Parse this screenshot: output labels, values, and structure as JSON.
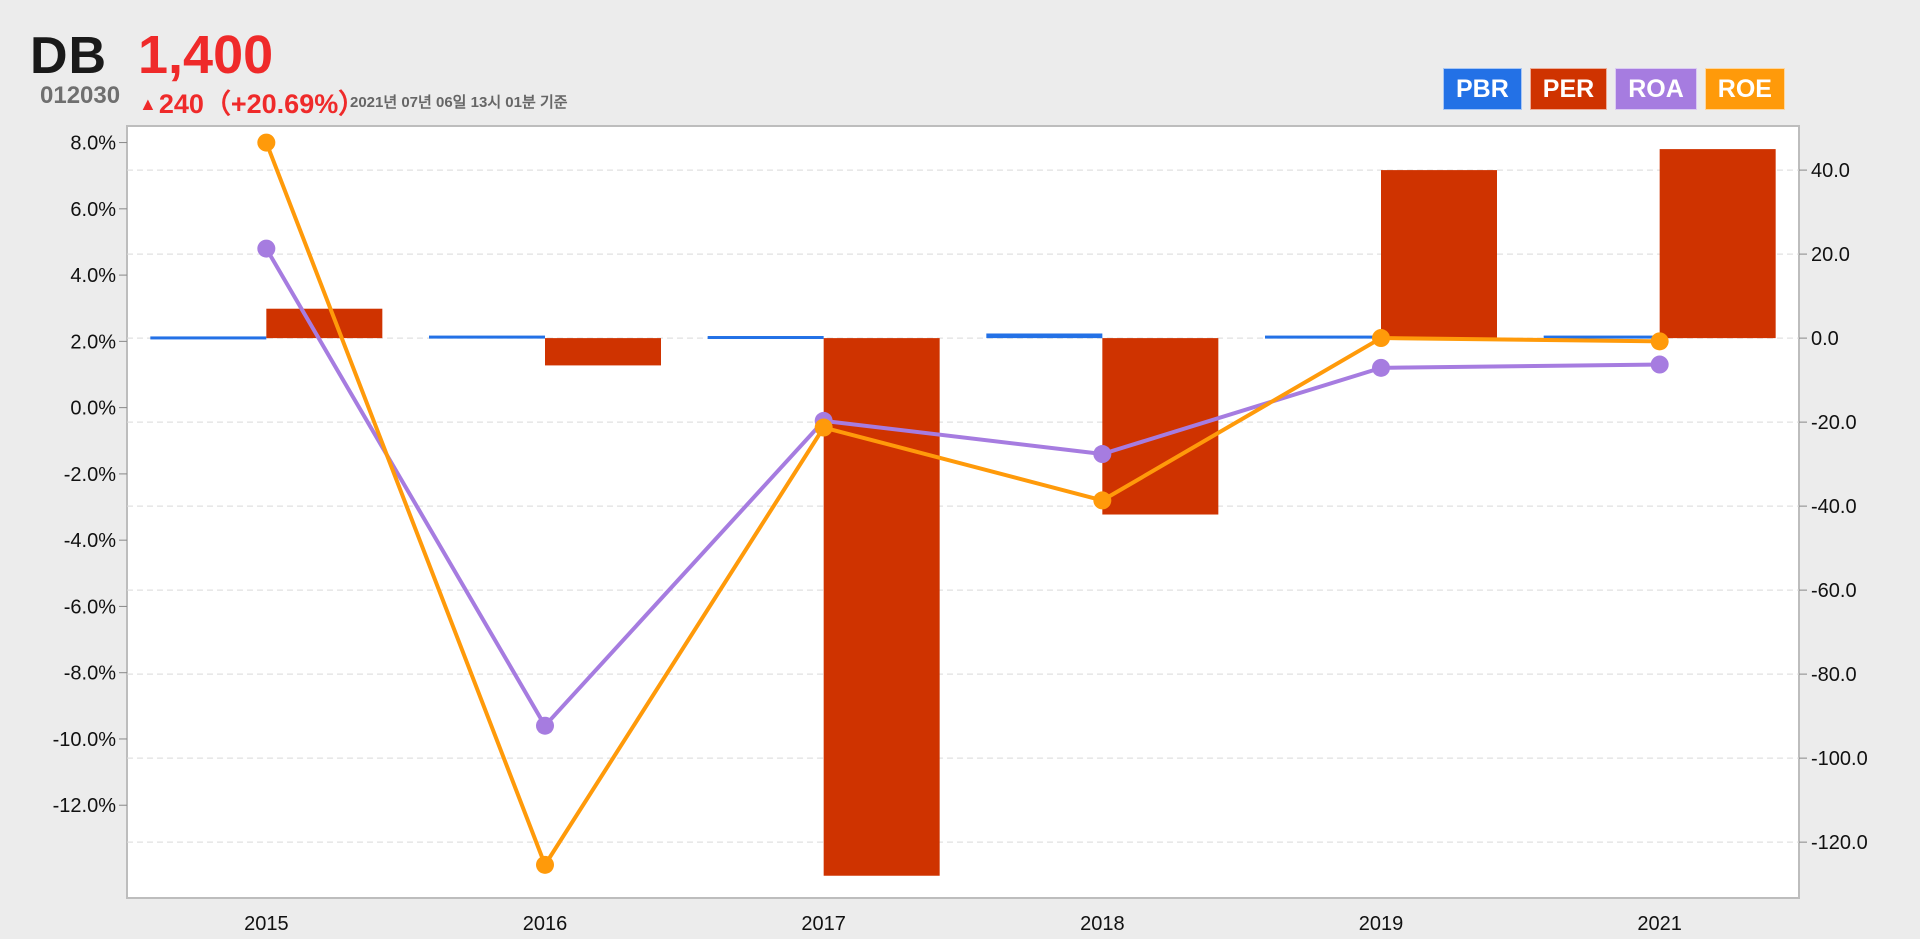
{
  "header": {
    "name": "DB",
    "price": "1,400",
    "code": "012030",
    "change_arrow": "▲",
    "change": "240（+20.69%）",
    "timestamp": "2021년 07년 06일 13시 01분 기준"
  },
  "legend": [
    {
      "label": "PBR",
      "color": "#2371e6"
    },
    {
      "label": "PER",
      "color": "#cf3300"
    },
    {
      "label": "ROA",
      "color": "#a67ce0"
    },
    {
      "label": "ROE",
      "color": "#ff9a0a"
    }
  ],
  "chart_data": {
    "type": "bar",
    "categories": [
      "2015",
      "2016",
      "2017",
      "2018",
      "2019",
      "2021"
    ],
    "series": [
      {
        "name": "PBR",
        "type": "bar",
        "axis": "right",
        "color": "#2371e6",
        "values": [
          0.4,
          0.6,
          0.5,
          1.1,
          0.6,
          0.6
        ]
      },
      {
        "name": "PER",
        "type": "bar",
        "axis": "right",
        "color": "#cf3300",
        "values": [
          7.0,
          -6.5,
          -128.0,
          -42.0,
          40.0,
          45.0
        ]
      },
      {
        "name": "ROA",
        "type": "line",
        "axis": "left",
        "color": "#a67ce0",
        "values": [
          4.8,
          -9.6,
          -0.4,
          -1.4,
          1.2,
          1.3
        ]
      },
      {
        "name": "ROE",
        "type": "line",
        "axis": "left",
        "color": "#ff9a0a",
        "values": [
          8.0,
          -13.8,
          -0.6,
          -2.8,
          2.1,
          2.0
        ]
      }
    ],
    "left_axis": {
      "ticks": [
        "8.0%",
        "6.0%",
        "4.0%",
        "2.0%",
        "0.0%",
        "-2.0%",
        "-4.0%",
        "-6.0%",
        "-8.0%",
        "-10.0%",
        "-12.0%"
      ],
      "tick_values": [
        8,
        6,
        4,
        2,
        0,
        -2,
        -4,
        -6,
        -8,
        -10,
        -12
      ],
      "range": [
        -14.8,
        8.5
      ]
    },
    "right_axis": {
      "ticks": [
        "40.0",
        "20.0",
        "0.0",
        "-20.0",
        "-40.0",
        "-60.0",
        "-80.0",
        "-100.0",
        "-120.0"
      ],
      "tick_values": [
        40,
        20,
        0,
        -20,
        -40,
        -60,
        -80,
        -100,
        -120
      ],
      "range": [
        -133.3,
        50.5
      ]
    },
    "grid": true
  }
}
